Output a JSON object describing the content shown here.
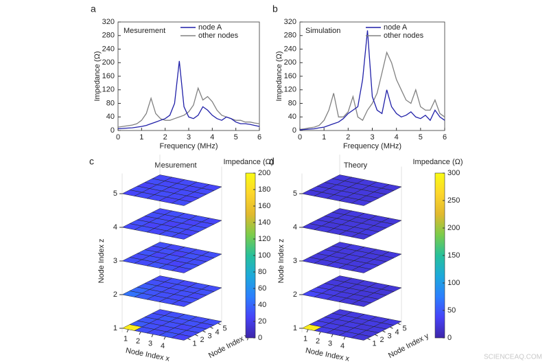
{
  "chart_data": [
    {
      "type": "line",
      "panel": "a",
      "title": "Mesurement",
      "xlabel": "Frequency (MHz)",
      "ylabel": "Impedance (Ω)",
      "x": [
        0,
        0.2,
        0.4,
        0.6,
        0.8,
        1,
        1.2,
        1.4,
        1.6,
        1.8,
        2,
        2.2,
        2.4,
        2.6,
        2.8,
        3,
        3.2,
        3.4,
        3.6,
        3.8,
        4,
        4.2,
        4.4,
        4.6,
        4.8,
        5,
        5.2,
        5.4,
        5.6,
        5.8,
        6
      ],
      "series": [
        {
          "name": "other nodes",
          "color": "#808080",
          "values": [
            10,
            12,
            14,
            16,
            20,
            30,
            50,
            95,
            50,
            35,
            30,
            30,
            35,
            40,
            45,
            55,
            75,
            125,
            90,
            100,
            85,
            60,
            45,
            40,
            35,
            30,
            30,
            25,
            25,
            22,
            20
          ]
        },
        {
          "name": "node A",
          "color": "#1f1fa8",
          "values": [
            5,
            6,
            7,
            8,
            10,
            12,
            15,
            20,
            25,
            30,
            35,
            45,
            80,
            205,
            70,
            40,
            35,
            45,
            70,
            60,
            45,
            35,
            30,
            40,
            35,
            25,
            20,
            20,
            18,
            15,
            12
          ]
        }
      ],
      "xlim": [
        0,
        6
      ],
      "xticks": [
        0,
        1,
        2,
        3,
        4,
        5,
        6
      ],
      "ylim": [
        0,
        320
      ],
      "yticks": [
        0,
        40,
        80,
        120,
        160,
        200,
        240,
        280,
        320
      ],
      "legend": "upper right"
    },
    {
      "type": "line",
      "panel": "b",
      "title": "Simulation",
      "xlabel": "Frequency (MHz)",
      "ylabel": "Impedance (Ω)",
      "x": [
        0,
        0.2,
        0.4,
        0.6,
        0.8,
        1,
        1.2,
        1.4,
        1.6,
        1.8,
        2,
        2.2,
        2.4,
        2.6,
        2.8,
        3,
        3.2,
        3.4,
        3.6,
        3.8,
        4,
        4.2,
        4.4,
        4.6,
        4.8,
        5,
        5.2,
        5.4,
        5.6,
        5.8,
        6
      ],
      "series": [
        {
          "name": "other nodes",
          "color": "#808080",
          "values": [
            3,
            5,
            8,
            10,
            15,
            30,
            60,
            110,
            40,
            40,
            55,
            100,
            40,
            30,
            60,
            80,
            110,
            170,
            230,
            200,
            150,
            120,
            90,
            80,
            120,
            70,
            60,
            60,
            90,
            50,
            40
          ]
        },
        {
          "name": "node A",
          "color": "#1f1fa8",
          "values": [
            2,
            3,
            4,
            5,
            8,
            10,
            15,
            20,
            25,
            35,
            50,
            60,
            70,
            150,
            295,
            100,
            60,
            50,
            120,
            70,
            50,
            40,
            45,
            55,
            40,
            35,
            45,
            30,
            60,
            40,
            30
          ]
        }
      ],
      "xlim": [
        0,
        6
      ],
      "xticks": [
        0,
        1,
        2,
        3,
        4,
        5,
        6
      ],
      "ylim": [
        0,
        320
      ],
      "yticks": [
        0,
        40,
        80,
        120,
        160,
        200,
        240,
        280,
        320
      ],
      "legend": "upper right"
    },
    {
      "type": "heatmap",
      "panel": "c",
      "title": "Mesurement",
      "xlabel": "Node Index x",
      "ylabel": "Node Index y",
      "zlabel": "Node Index z",
      "colorbar_label": "Impedance (Ω)",
      "clim": [
        0,
        200
      ],
      "cticks": [
        0,
        20,
        40,
        60,
        80,
        100,
        120,
        140,
        160,
        180,
        200
      ],
      "xticks": [
        1,
        2,
        3,
        4
      ],
      "yticks": [
        1,
        2,
        3,
        4,
        5
      ],
      "zticks": [
        1,
        2,
        3,
        4,
        5
      ],
      "colormap": [
        "#3e26a8",
        "#4743f8",
        "#2c7ffe",
        "#1da9db",
        "#27c09b",
        "#7bcc4b",
        "#e1b92e",
        "#fdd62c",
        "#f9fb14"
      ],
      "values": [
        [
          [
            190,
            30,
            28,
            32,
            25
          ],
          [
            35,
            30,
            27,
            30,
            28
          ],
          [
            32,
            28,
            30,
            26,
            30
          ],
          [
            30,
            33,
            29,
            31,
            27
          ],
          [
            28,
            30,
            32,
            29,
            30
          ]
        ],
        [
          [
            45,
            35,
            30,
            30,
            28
          ],
          [
            40,
            32,
            30,
            28,
            30
          ],
          [
            35,
            30,
            28,
            30,
            27
          ],
          [
            30,
            28,
            30,
            29,
            31
          ],
          [
            28,
            30,
            27,
            30,
            29
          ]
        ],
        [
          [
            30,
            28,
            32,
            30,
            26
          ],
          [
            28,
            30,
            27,
            25,
            30
          ],
          [
            32,
            26,
            30,
            28,
            29
          ],
          [
            27,
            30,
            25,
            31,
            28
          ],
          [
            30,
            27,
            29,
            28,
            30
          ]
        ],
        [
          [
            28,
            30,
            26,
            29,
            27
          ],
          [
            30,
            25,
            28,
            30,
            26
          ],
          [
            26,
            29,
            24,
            27,
            30
          ],
          [
            29,
            27,
            30,
            25,
            28
          ],
          [
            27,
            30,
            28,
            29,
            26
          ]
        ],
        [
          [
            26,
            28,
            27,
            25,
            29
          ],
          [
            28,
            26,
            29,
            27,
            25
          ],
          [
            25,
            29,
            26,
            28,
            27
          ],
          [
            29,
            27,
            28,
            26,
            28
          ],
          [
            27,
            25,
            28,
            27,
            26
          ]
        ]
      ]
    },
    {
      "type": "heatmap",
      "panel": "d",
      "title": "Theory",
      "xlabel": "Node Index x",
      "ylabel": "Node Index y",
      "zlabel": "Node Index z",
      "colorbar_label": "Impedance (Ω)",
      "clim": [
        0,
        300
      ],
      "cticks": [
        0,
        50,
        100,
        150,
        200,
        250,
        300
      ],
      "xticks": [
        1,
        2,
        3,
        4
      ],
      "yticks": [
        1,
        2,
        3,
        4,
        5
      ],
      "zticks": [
        1,
        2,
        3,
        4,
        5
      ],
      "colormap": [
        "#3e26a8",
        "#4743f8",
        "#2c7ffe",
        "#1da9db",
        "#27c09b",
        "#7bcc4b",
        "#e1b92e",
        "#fdd62c",
        "#f9fb14"
      ],
      "values": [
        [
          [
            285,
            30,
            25,
            28,
            22
          ],
          [
            32,
            28,
            25,
            27,
            24
          ],
          [
            28,
            25,
            27,
            23,
            26
          ],
          [
            26,
            29,
            24,
            27,
            25
          ],
          [
            24,
            26,
            28,
            25,
            27
          ]
        ],
        [
          [
            40,
            30,
            26,
            24,
            22
          ],
          [
            34,
            28,
            25,
            23,
            24
          ],
          [
            28,
            25,
            24,
            22,
            23
          ],
          [
            25,
            24,
            23,
            24,
            22
          ],
          [
            23,
            22,
            24,
            23,
            22
          ]
        ],
        [
          [
            26,
            24,
            27,
            25,
            23
          ],
          [
            24,
            26,
            23,
            25,
            27
          ],
          [
            27,
            23,
            25,
            24,
            26
          ],
          [
            23,
            25,
            26,
            24,
            22
          ],
          [
            25,
            27,
            24,
            23,
            25
          ]
        ],
        [
          [
            24,
            26,
            23,
            25,
            22
          ],
          [
            26,
            22,
            25,
            24,
            27
          ],
          [
            23,
            25,
            24,
            26,
            22
          ],
          [
            25,
            24,
            22,
            23,
            26
          ],
          [
            22,
            26,
            25,
            24,
            23
          ]
        ],
        [
          [
            23,
            25,
            24,
            22,
            26
          ],
          [
            25,
            23,
            26,
            24,
            22
          ],
          [
            22,
            26,
            23,
            25,
            24
          ],
          [
            26,
            24,
            25,
            23,
            22
          ],
          [
            24,
            22,
            25,
            26,
            23
          ]
        ]
      ]
    }
  ],
  "watermark": "SCIENCEAQ.COM"
}
